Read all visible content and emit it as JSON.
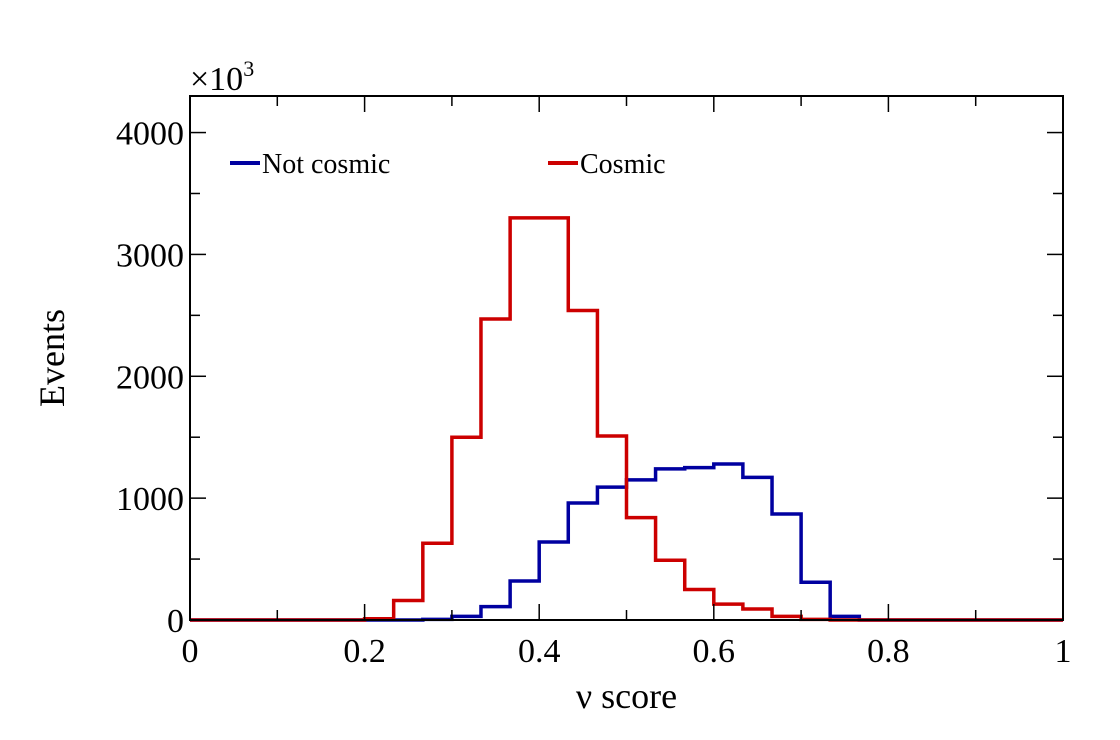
{
  "chart_data": {
    "type": "histogram-step",
    "xlabel": "ν score",
    "ylabel": "Events",
    "y_multiplier_base": "×10",
    "y_multiplier_exponent": "3",
    "xlim": [
      0,
      1
    ],
    "ylim": [
      0,
      4300
    ],
    "x_ticks": [
      0,
      0.2,
      0.4,
      0.6,
      0.8,
      1
    ],
    "x_tick_labels": [
      "0",
      "0.2",
      "0.4",
      "0.6",
      "0.8",
      "1"
    ],
    "y_ticks": [
      0,
      1000,
      2000,
      3000,
      4000
    ],
    "y_tick_labels": [
      "0",
      "1000",
      "2000",
      "3000",
      "4000"
    ],
    "grid": false,
    "legend_position": "top-left",
    "bin_edges": [
      0,
      0.0333,
      0.0667,
      0.1,
      0.1333,
      0.1667,
      0.2,
      0.2333,
      0.2667,
      0.3,
      0.3333,
      0.3667,
      0.4,
      0.4333,
      0.4667,
      0.5,
      0.5333,
      0.5667,
      0.6,
      0.6333,
      0.6667,
      0.7,
      0.7333,
      0.7667,
      0.8,
      0.8333,
      0.8667,
      0.9,
      0.9333,
      0.9667,
      1.0
    ],
    "series": [
      {
        "name": "Not cosmic",
        "color": "#0000a0",
        "values": [
          0,
          0,
          0,
          0,
          0,
          0,
          0,
          0,
          5,
          30,
          110,
          320,
          640,
          960,
          1090,
          1150,
          1240,
          1250,
          1280,
          1170,
          870,
          310,
          30,
          0,
          0,
          0,
          0,
          0,
          0,
          0
        ]
      },
      {
        "name": "Cosmic",
        "color": "#cc0000",
        "values": [
          0,
          0,
          0,
          0,
          0,
          0,
          10,
          160,
          630,
          1500,
          2470,
          3300,
          3300,
          2540,
          1510,
          840,
          490,
          250,
          130,
          90,
          30,
          5,
          0,
          0,
          0,
          0,
          0,
          0,
          0,
          0
        ]
      }
    ]
  }
}
